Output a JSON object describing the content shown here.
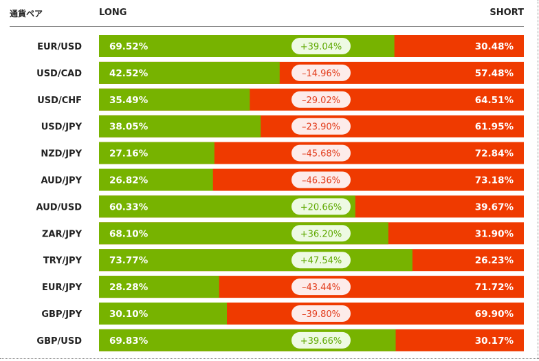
{
  "header": {
    "pair_label": "通貨ペア",
    "long_label": "LONG",
    "short_label": "SHORT"
  },
  "colors": {
    "long": "#77b300",
    "short": "#ef3a00",
    "pill_positive_bg": "#eefae3",
    "pill_positive_text": "#5ea800",
    "pill_negative_bg": "#fdecea",
    "pill_negative_text": "#e23b1a"
  },
  "chart_data": {
    "type": "bar",
    "stacked": true,
    "orientation": "horizontal",
    "categories": [
      "EUR/USD",
      "USD/CAD",
      "USD/CHF",
      "USD/JPY",
      "NZD/JPY",
      "AUD/JPY",
      "AUD/USD",
      "ZAR/JPY",
      "TRY/JPY",
      "EUR/JPY",
      "GBP/JPY",
      "GBP/USD"
    ],
    "series": [
      {
        "name": "LONG",
        "values": [
          69.52,
          42.52,
          35.49,
          38.05,
          27.16,
          26.82,
          60.33,
          68.1,
          73.77,
          28.28,
          30.1,
          69.83
        ]
      },
      {
        "name": "SHORT",
        "values": [
          30.48,
          57.48,
          64.51,
          61.95,
          72.84,
          73.18,
          39.67,
          31.9,
          26.23,
          71.72,
          69.9,
          30.17
        ]
      }
    ],
    "long_labels": [
      "69.52%",
      "42.52%",
      "35.49%",
      "38.05%",
      "27.16%",
      "26.82%",
      "60.33%",
      "68.10%",
      "73.77%",
      "28.28%",
      "30.10%",
      "69.83%"
    ],
    "short_labels": [
      "30.48%",
      "57.48%",
      "64.51%",
      "61.95%",
      "72.84%",
      "73.18%",
      "39.67%",
      "31.90%",
      "26.23%",
      "71.72%",
      "69.90%",
      "30.17%"
    ],
    "difference_labels": [
      "+39.04%",
      "–14.96%",
      "–29.02%",
      "–23.90%",
      "–45.68%",
      "–46.36%",
      "+20.66%",
      "+36.20%",
      "+47.54%",
      "–43.44%",
      "–39.80%",
      "+39.66%"
    ],
    "difference_sign": [
      "+",
      "-",
      "-",
      "-",
      "-",
      "-",
      "+",
      "+",
      "+",
      "-",
      "-",
      "+"
    ],
    "xlim": [
      0,
      100
    ]
  }
}
